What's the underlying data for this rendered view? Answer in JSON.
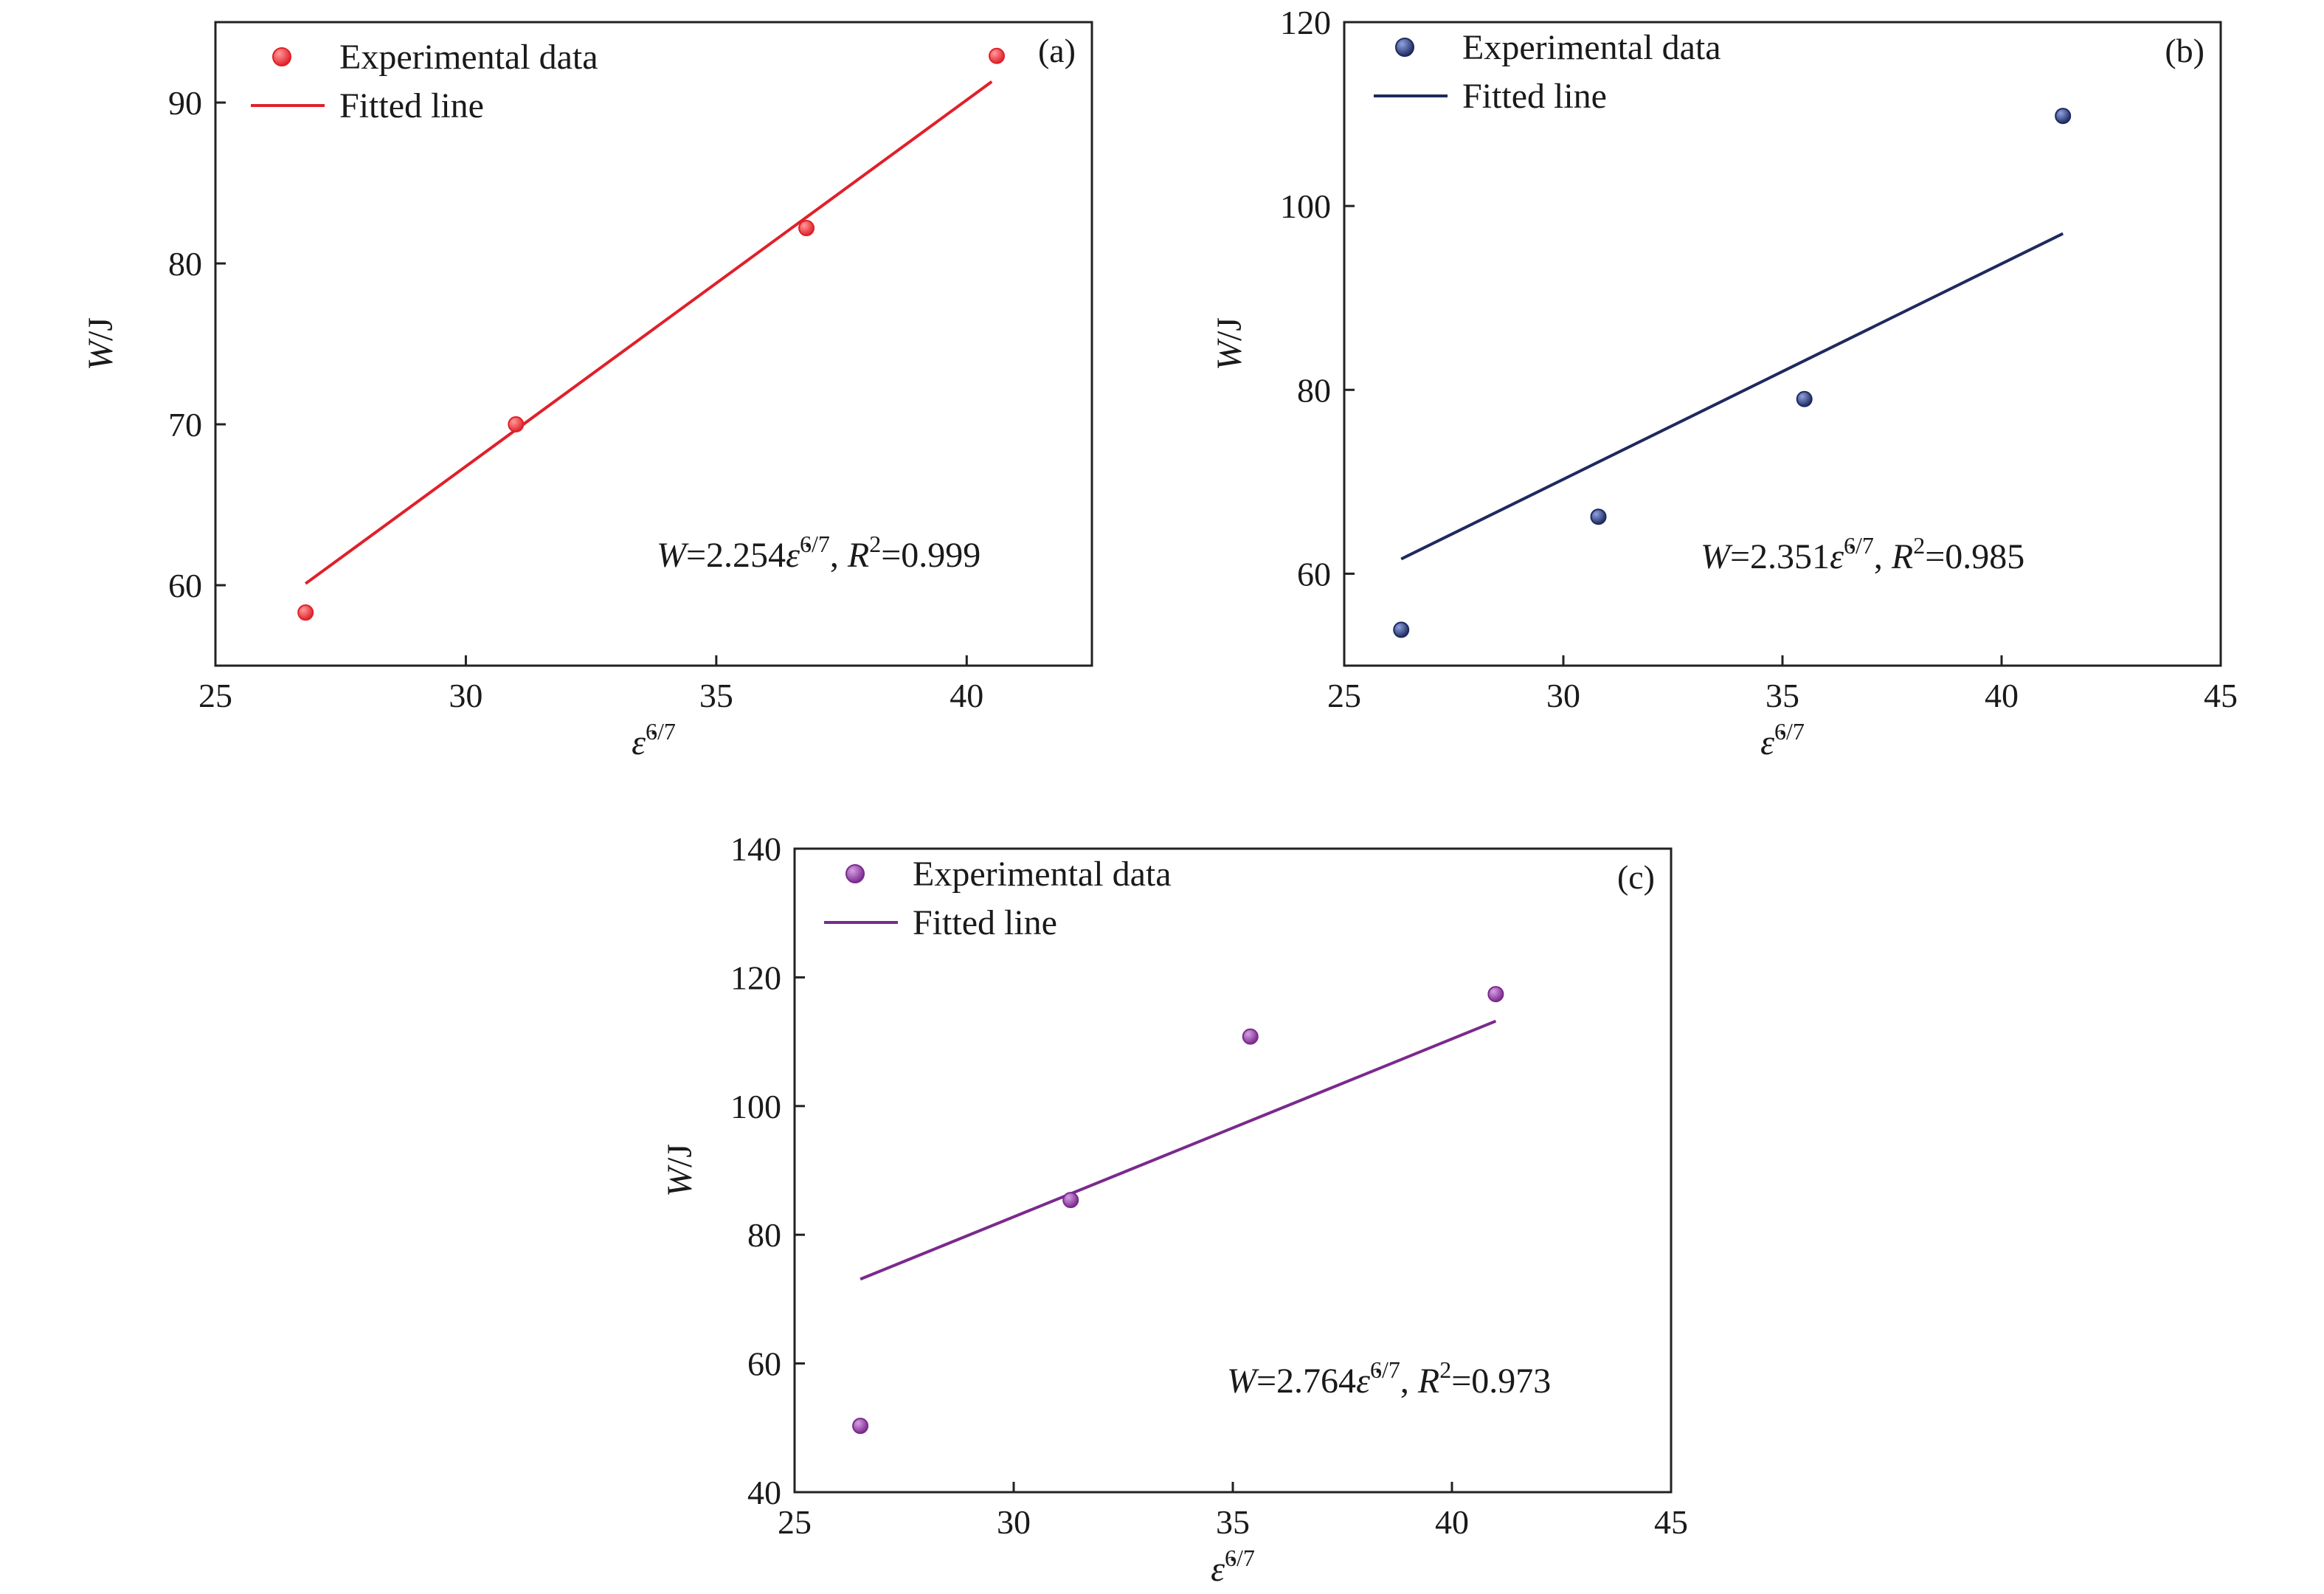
{
  "figure": {
    "panels": [
      {
        "label": "(a)",
        "color": "#e0202a",
        "marker_hi": "#ff9a9a"
      },
      {
        "label": "(b)",
        "color": "#1e2a5e",
        "marker_hi": "#8fa2e0"
      },
      {
        "label": "(c)",
        "color": "#7a2a8c",
        "marker_hi": "#d7a0e6"
      }
    ]
  },
  "chart_data": [
    {
      "type": "scatter",
      "xlabel": "ε̇6/7",
      "ylabel": "W/J",
      "xlim": [
        25,
        42.5
      ],
      "ylim": [
        55,
        95
      ],
      "xticks": [
        25,
        30,
        35,
        40
      ],
      "yticks": [
        60,
        70,
        80,
        90
      ],
      "legend": {
        "placement": "top-left",
        "entries": [
          "Experimental data",
          "Fitted line"
        ]
      },
      "grid": false,
      "series": [
        {
          "name": "Experimental data",
          "type": "scatter",
          "x": [
            26.8,
            31.0,
            36.8,
            40.6
          ],
          "y": [
            58.3,
            70.0,
            82.2,
            92.9
          ]
        },
        {
          "name": "Fitted line",
          "type": "line",
          "x": [
            26.8,
            40.5
          ],
          "y": [
            60.1,
            91.3
          ]
        }
      ],
      "annotation": {
        "lead": "W",
        "eq": "=2.254",
        "var": "ε̇",
        "exp": "6/7",
        "sep": ", ",
        "r": "R",
        "r_exp": "2",
        "r_val": "=0.999"
      }
    },
    {
      "type": "scatter",
      "xlabel": "ε̇6/7",
      "ylabel": "W/J",
      "xlim": [
        25,
        45
      ],
      "ylim": [
        50,
        120
      ],
      "xticks": [
        25,
        30,
        35,
        40,
        45
      ],
      "yticks": [
        60,
        80,
        100,
        120
      ],
      "legend": {
        "placement": "top-left",
        "entries": [
          "Experimental data",
          "Fitted line"
        ]
      },
      "grid": false,
      "series": [
        {
          "name": "Experimental data",
          "type": "scatter",
          "x": [
            26.3,
            30.8,
            35.5,
            41.4
          ],
          "y": [
            53.9,
            66.2,
            79.0,
            109.8
          ]
        },
        {
          "name": "Fitted line",
          "type": "line",
          "x": [
            26.3,
            41.4
          ],
          "y": [
            61.6,
            97.0
          ]
        }
      ],
      "annotation": {
        "lead": "W",
        "eq": "=2.351",
        "var": "ε̇",
        "exp": "6/7",
        "sep": ", ",
        "r": "R",
        "r_exp": "2",
        "r_val": "=0.985"
      }
    },
    {
      "type": "scatter",
      "xlabel": "ε̇6/7",
      "ylabel": "W/J",
      "xlim": [
        25,
        45
      ],
      "ylim": [
        40,
        140
      ],
      "xticks": [
        25,
        30,
        35,
        40,
        45
      ],
      "yticks": [
        40,
        60,
        80,
        100,
        120,
        140
      ],
      "legend": {
        "placement": "top-left",
        "entries": [
          "Experimental data",
          "Fitted line"
        ]
      },
      "grid": false,
      "series": [
        {
          "name": "Experimental data",
          "type": "scatter",
          "x": [
            26.5,
            31.3,
            35.4,
            41.0
          ],
          "y": [
            50.3,
            85.4,
            110.8,
            117.4
          ]
        },
        {
          "name": "Fitted line",
          "type": "line",
          "x": [
            26.5,
            41.0
          ],
          "y": [
            73.1,
            113.2
          ]
        }
      ],
      "annotation": {
        "lead": "W",
        "eq": "=2.764",
        "var": "ε̇",
        "exp": "6/7",
        "sep": ", ",
        "r": "R",
        "r_exp": "2",
        "r_val": "=0.973"
      }
    }
  ]
}
